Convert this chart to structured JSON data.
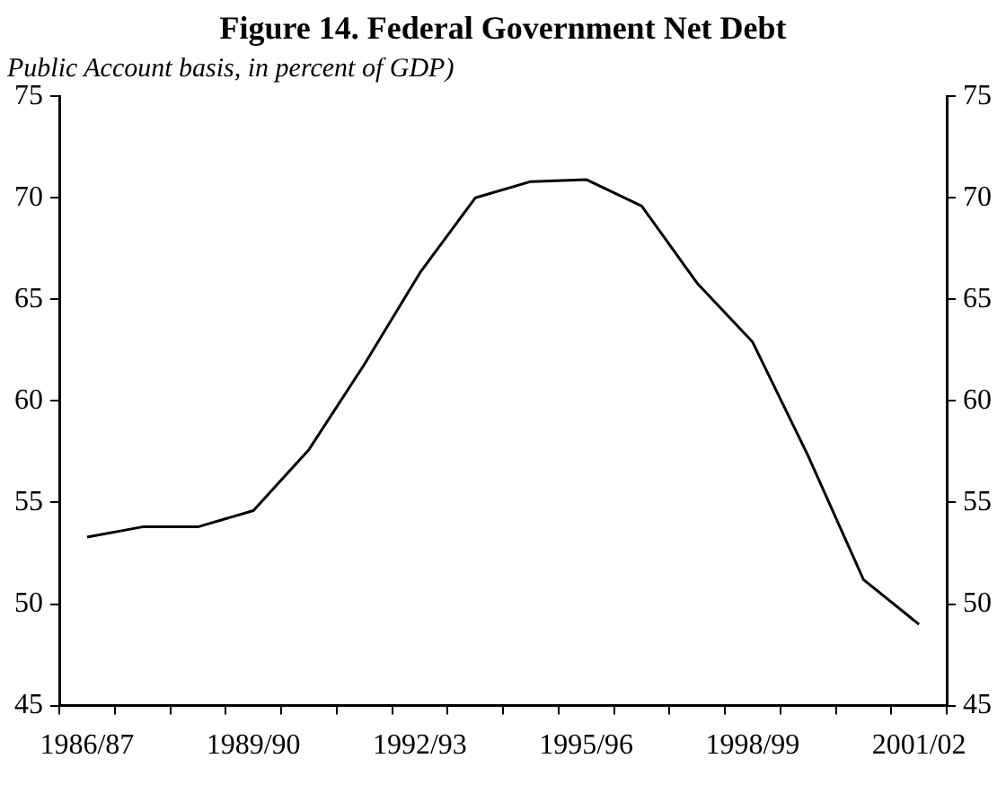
{
  "chart_data": {
    "type": "line",
    "title": "Figure 14. Federal Government Net Debt",
    "subtitle": "Public Account basis, in percent of GDP)",
    "categories": [
      "1986/87",
      null,
      null,
      "1989/90",
      null,
      null,
      "1992/93",
      null,
      null,
      "1995/96",
      null,
      null,
      "1998/99",
      null,
      null,
      "2001/02"
    ],
    "series": [
      {
        "color": "#000000",
        "values": [
          53.3,
          53.8,
          53.8,
          54.6,
          57.6,
          61.8,
          66.3,
          70.0,
          70.8,
          70.9,
          69.6,
          65.8,
          62.9,
          57.3,
          51.2,
          49.0
        ]
      }
    ],
    "ylim": [
      45,
      75
    ],
    "yticks": [
      45,
      50,
      55,
      60,
      65,
      70,
      75
    ],
    "y2lim": [
      45,
      75
    ],
    "y2ticks": [
      45,
      50,
      55,
      60,
      65,
      70,
      75
    ],
    "grid": false,
    "legend": false,
    "marker": "none",
    "line_style": "solid"
  }
}
